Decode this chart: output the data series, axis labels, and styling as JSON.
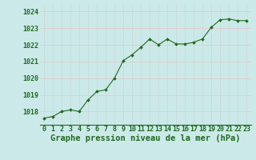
{
  "x": [
    0,
    1,
    2,
    3,
    4,
    5,
    6,
    7,
    8,
    9,
    10,
    11,
    12,
    13,
    14,
    15,
    16,
    17,
    18,
    19,
    20,
    21,
    22,
    23
  ],
  "y": [
    1017.6,
    1017.7,
    1018.0,
    1018.1,
    1018.0,
    1018.7,
    1019.2,
    1019.3,
    1020.0,
    1021.05,
    1021.4,
    1021.85,
    1022.35,
    1022.0,
    1022.35,
    1022.05,
    1022.05,
    1022.15,
    1022.35,
    1023.05,
    1023.5,
    1023.55,
    1023.45,
    1023.45
  ],
  "ylim": [
    1017.2,
    1024.4
  ],
  "yticks": [
    1018,
    1019,
    1020,
    1021,
    1022,
    1023,
    1024
  ],
  "xticks": [
    0,
    1,
    2,
    3,
    4,
    5,
    6,
    7,
    8,
    9,
    10,
    11,
    12,
    13,
    14,
    15,
    16,
    17,
    18,
    19,
    20,
    21,
    22,
    23
  ],
  "xlabel": "Graphe pression niveau de la mer (hPa)",
  "line_color": "#1f6b1f",
  "marker_color": "#1f6b1f",
  "bg_color": "#cce9e9",
  "grid_color_v": "#c8dada",
  "grid_color_h": "#e8c8c8",
  "xlabel_color": "#1f6b1f",
  "xlabel_fontsize": 7.5,
  "tick_fontsize": 6.0,
  "ytick_color": "#1f6b1f",
  "xtick_color": "#1f6b1f"
}
